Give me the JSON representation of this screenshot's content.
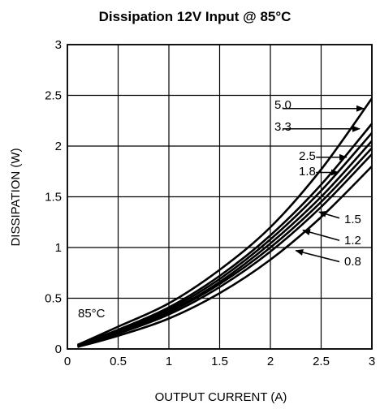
{
  "chart_data": {
    "type": "line",
    "title": "Dissipation 12V Input @ 85°C",
    "xlabel": "OUTPUT CURRENT (A)",
    "ylabel": "DISSIPATION (W)",
    "xlim": [
      0,
      3
    ],
    "ylim": [
      0,
      3
    ],
    "xticks": [
      "0",
      "0.5",
      "1",
      "1.5",
      "2",
      "2.5",
      "3"
    ],
    "yticks": [
      "0",
      "0.5",
      "1",
      "1.5",
      "2",
      "2.5",
      "3"
    ],
    "grid": true,
    "annotation": "85°C",
    "x": [
      0.1,
      0.5,
      1.0,
      1.5,
      2.0,
      2.5,
      3.0
    ],
    "series": [
      {
        "name": "5.0",
        "values": [
          0.04,
          0.22,
          0.45,
          0.78,
          1.2,
          1.77,
          2.47
        ]
      },
      {
        "name": "3.3",
        "values": [
          0.04,
          0.19,
          0.41,
          0.72,
          1.12,
          1.62,
          2.22
        ]
      },
      {
        "name": "2.5",
        "values": [
          0.03,
          0.18,
          0.39,
          0.69,
          1.08,
          1.56,
          2.13
        ]
      },
      {
        "name": "1.8",
        "values": [
          0.03,
          0.17,
          0.37,
          0.66,
          1.04,
          1.5,
          2.05
        ]
      },
      {
        "name": "1.5",
        "values": [
          0.03,
          0.16,
          0.36,
          0.64,
          1.0,
          1.45,
          1.98
        ]
      },
      {
        "name": "1.2",
        "values": [
          0.02,
          0.15,
          0.34,
          0.61,
          0.96,
          1.4,
          1.92
        ]
      },
      {
        "name": "0.8",
        "values": [
          0.02,
          0.13,
          0.3,
          0.55,
          0.88,
          1.3,
          1.8
        ]
      }
    ]
  }
}
